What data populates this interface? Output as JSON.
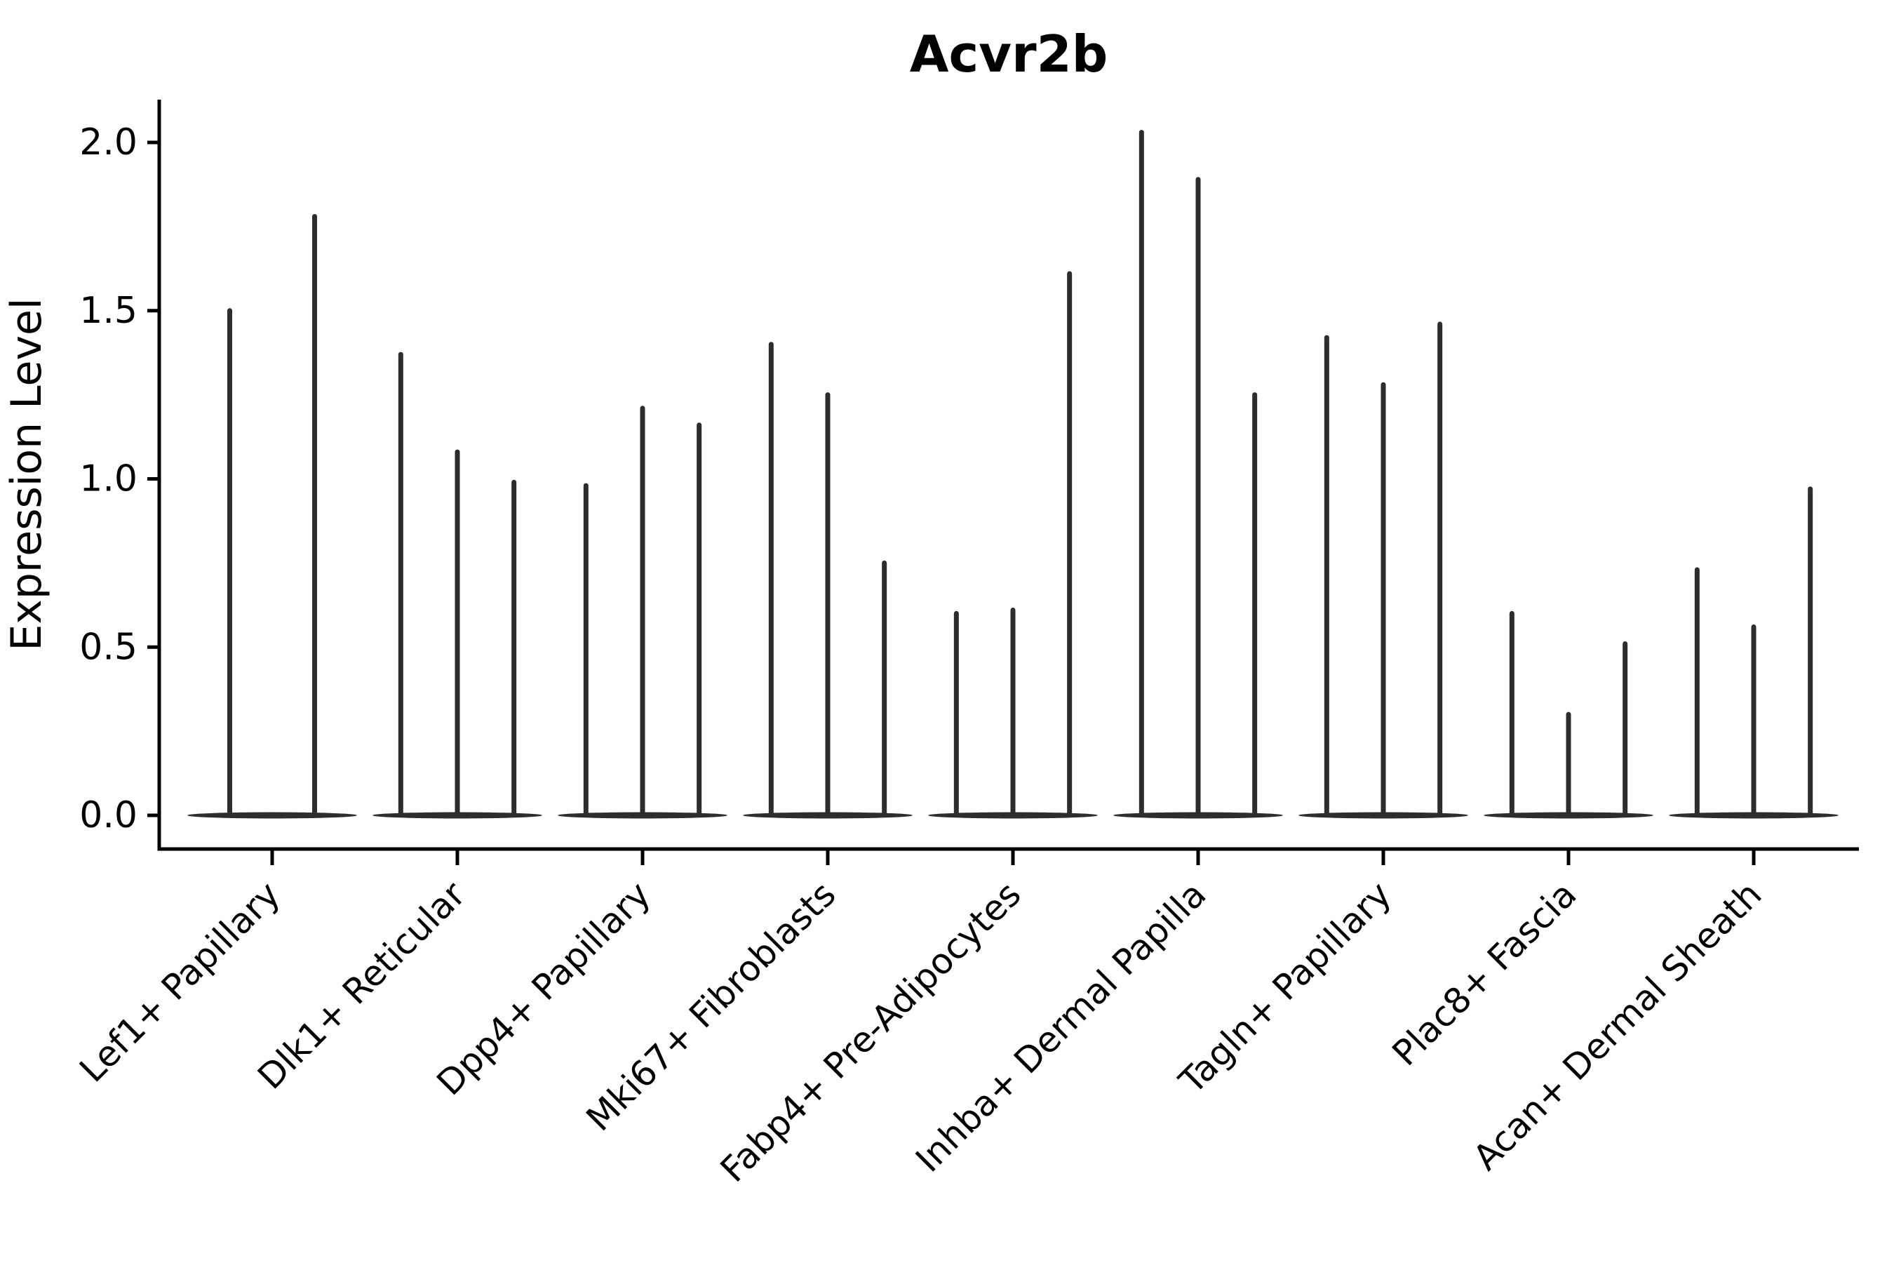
{
  "chart_data": {
    "type": "violin",
    "title": "Acvr2b",
    "xlabel": "",
    "ylabel": "Expression Level",
    "legend_position": "none",
    "grid": false,
    "y_axis": {
      "ticks": [
        0.0,
        0.5,
        1.0,
        1.5,
        2.0
      ],
      "tick_labels": [
        "0.0",
        "0.5",
        "1.0",
        "1.5",
        "2.0"
      ],
      "ylim": [
        0.0,
        2.12
      ]
    },
    "style": {
      "violin_color": "#2d2d2d",
      "axis_color": "#000000",
      "background_color": "#ffffff"
    },
    "groups": [
      {
        "category": "Lef1+ Papillary",
        "violin_max_values": [
          1.5,
          1.78
        ]
      },
      {
        "category": "Dlk1+ Reticular",
        "violin_max_values": [
          1.37,
          1.08,
          0.99
        ]
      },
      {
        "category": "Dpp4+ Papillary",
        "violin_max_values": [
          0.98,
          1.21,
          1.16
        ]
      },
      {
        "category": "Mki67+ Fibroblasts",
        "violin_max_values": [
          1.4,
          1.25,
          0.75
        ]
      },
      {
        "category": "Fabp4+ Pre-Adipocytes",
        "violin_max_values": [
          0.6,
          0.61,
          1.61
        ]
      },
      {
        "category": "Inhba+ Dermal Papilla",
        "violin_max_values": [
          2.03,
          1.89,
          1.25
        ]
      },
      {
        "category": "Tagln+ Papillary",
        "violin_max_values": [
          1.42,
          1.28,
          1.46
        ]
      },
      {
        "category": "Plac8+ Fascia",
        "violin_max_values": [
          0.6,
          0.3,
          0.51
        ]
      },
      {
        "category": "Acan+ Dermal Sheath",
        "violin_max_values": [
          0.73,
          0.56,
          0.97
        ]
      }
    ]
  }
}
